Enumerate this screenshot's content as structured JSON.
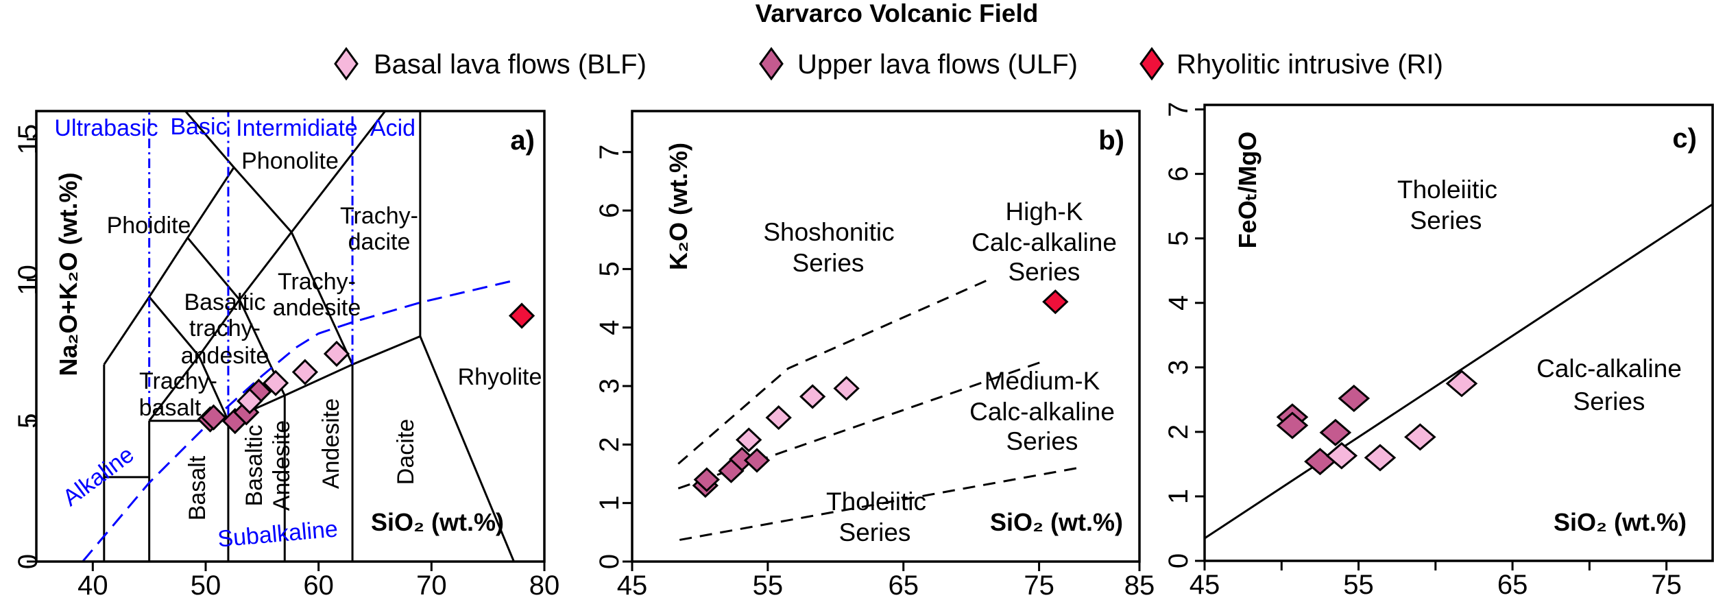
{
  "title": "Varvarco Volcanic Field",
  "legend": [
    {
      "key": "BLF",
      "label": "Basal lava flows (BLF)",
      "color": "#F6B8DC"
    },
    {
      "key": "ULF",
      "label": "Upper lava flows (ULF)",
      "color": "#C45A8F"
    },
    {
      "key": "RI",
      "label": "Rhyolitic intrusive (RI)",
      "color": "#F0103A"
    }
  ],
  "chart_data": [
    {
      "type": "scatter",
      "panel_label": "a)",
      "xlabel": "SiO₂ (wt.%)",
      "ylabel": "Na₂O+K₂O (wt.%)",
      "xlim": [
        35,
        80
      ],
      "ylim": [
        0,
        16
      ],
      "xticks": [
        40,
        50,
        60,
        70,
        80
      ],
      "xtick_labels": [
        "40",
        "50",
        "60",
        "70",
        "80"
      ],
      "yticks": [
        0,
        5,
        10,
        15
      ],
      "ytick_labels": [
        "0",
        "5",
        "10",
        "15"
      ],
      "grid": false,
      "series": [
        {
          "key": "ULF",
          "x": [
            50.4,
            50.7,
            52.6,
            53.6,
            54.7
          ],
          "y": [
            5.05,
            5.12,
            4.99,
            5.3,
            6.03
          ]
        },
        {
          "key": "BLF",
          "x": [
            53.9,
            56.2,
            58.8,
            61.6
          ],
          "y": [
            5.7,
            6.34,
            6.73,
            7.38
          ]
        },
        {
          "key": "RI",
          "x": [
            78.0
          ],
          "y": [
            8.73
          ]
        }
      ],
      "boundaries": [
        {
          "style": "solid",
          "color": "#000000",
          "points": [
            [
              41,
              0
            ],
            [
              41,
              7
            ]
          ]
        },
        {
          "style": "solid",
          "color": "#000000",
          "points": [
            [
              41,
              3
            ],
            [
              45,
              3
            ]
          ]
        },
        {
          "style": "solid",
          "color": "#000000",
          "points": [
            [
              45,
              0
            ],
            [
              45,
              5
            ]
          ]
        },
        {
          "style": "solid",
          "color": "#000000",
          "points": [
            [
              45,
              5
            ],
            [
              52,
              5
            ]
          ]
        },
        {
          "style": "solid",
          "color": "#000000",
          "points": [
            [
              52,
              0
            ],
            [
              52,
              5
            ]
          ]
        },
        {
          "style": "solid",
          "color": "#000000",
          "points": [
            [
              57,
              0
            ],
            [
              57,
              5.9
            ]
          ]
        },
        {
          "style": "solid",
          "color": "#000000",
          "points": [
            [
              63,
              0
            ],
            [
              63,
              7
            ]
          ]
        },
        {
          "style": "solid",
          "color": "#000000",
          "points": [
            [
              52,
              5
            ],
            [
              57,
              5.9
            ],
            [
              63,
              7
            ],
            [
              69,
              8
            ]
          ]
        },
        {
          "style": "solid",
          "color": "#000000",
          "points": [
            [
              69,
              8
            ],
            [
              69,
              16
            ]
          ]
        },
        {
          "style": "solid",
          "color": "#000000",
          "points": [
            [
              69,
              8
            ],
            [
              77.3,
              0
            ]
          ]
        },
        {
          "style": "solid",
          "color": "#000000",
          "points": [
            [
              41,
              7
            ],
            [
              45,
              9.4
            ],
            [
              48.4,
              11.5
            ],
            [
              52.5,
              14
            ]
          ]
        },
        {
          "style": "solid",
          "color": "#000000",
          "points": [
            [
              48.2,
              16
            ],
            [
              52.5,
              14
            ],
            [
              57.6,
              11.7
            ],
            [
              63,
              7
            ]
          ]
        },
        {
          "style": "solid",
          "color": "#000000",
          "points": [
            [
              45,
              9.4
            ],
            [
              49.4,
              7.3
            ],
            [
              52,
              5
            ]
          ]
        },
        {
          "style": "solid",
          "color": "#000000",
          "points": [
            [
              45,
              5
            ],
            [
              49.4,
              7.3
            ]
          ]
        },
        {
          "style": "solid",
          "color": "#000000",
          "points": [
            [
              49.4,
              7.3
            ],
            [
              53,
              9.3
            ],
            [
              57,
              5.9
            ]
          ]
        },
        {
          "style": "solid",
          "color": "#000000",
          "points": [
            [
              48.4,
              11.5
            ],
            [
              53,
              9.3
            ],
            [
              57.6,
              11.7
            ],
            [
              65.9,
              16
            ]
          ]
        },
        {
          "style": "dashdot",
          "color": "#0000FF",
          "points": [
            [
              45,
              5.5
            ],
            [
              45,
              16
            ]
          ]
        },
        {
          "style": "dashdot",
          "color": "#0000FF",
          "points": [
            [
              52,
              5.2
            ],
            [
              52,
              16
            ]
          ]
        },
        {
          "style": "dashdot",
          "color": "#0000FF",
          "points": [
            [
              63,
              7
            ],
            [
              63,
              16
            ]
          ]
        },
        {
          "style": "dashed",
          "color": "#0000FF",
          "points": [
            [
              39.1,
              0
            ],
            [
              45,
              2.8
            ],
            [
              50,
              4.8
            ],
            [
              55,
              6.6
            ],
            [
              58,
              7.6
            ],
            [
              60,
              8.1
            ],
            [
              63,
              8.5
            ],
            [
              69,
              9.2
            ],
            [
              77.5,
              10.0
            ]
          ]
        }
      ],
      "annotations": [
        {
          "text": "Ultrabasic",
          "color": "#0000FF"
        },
        {
          "text": "Basic",
          "color": "#0000FF"
        },
        {
          "text": "Intermidiate",
          "color": "#0000FF"
        },
        {
          "text": "Acid",
          "color": "#0000FF"
        },
        {
          "text": "Phonolite"
        },
        {
          "text": "Phoidite"
        },
        {
          "text": "Trachy-"
        },
        {
          "text": "dacite"
        },
        {
          "text": "Trachy-"
        },
        {
          "text": "andesite"
        },
        {
          "text": "Basaltic"
        },
        {
          "text": "trachy-"
        },
        {
          "text": "andesite"
        },
        {
          "text": "Trachy-"
        },
        {
          "text": "basalt"
        },
        {
          "text": "Basalt"
        },
        {
          "text": "Basaltic"
        },
        {
          "text": "Andesite"
        },
        {
          "text": "Andesite"
        },
        {
          "text": "Dacite"
        },
        {
          "text": "Rhyolite"
        },
        {
          "text": "Alkaline",
          "color": "#0000FF"
        },
        {
          "text": "Subalkaline",
          "color": "#0000FF"
        }
      ]
    },
    {
      "type": "scatter",
      "panel_label": "b)",
      "xlabel": "SiO₂ (wt.%)",
      "ylabel": "K₂O (wt.%)",
      "xlim": [
        45,
        82.4
      ],
      "ylim": [
        0,
        7.7
      ],
      "xticks": [
        45,
        55,
        65,
        75,
        85
      ],
      "xtick_labels": [
        "45",
        "55",
        "65",
        "75",
        "85"
      ],
      "yticks": [
        0,
        1,
        2,
        3,
        4,
        5,
        6,
        7
      ],
      "ytick_labels": [
        "0",
        "1",
        "2",
        "3",
        "4",
        "5",
        "6",
        "7"
      ],
      "grid": false,
      "series": [
        {
          "key": "ULF",
          "x": [
            50.4,
            50.5,
            52.3,
            53.1,
            54.2
          ],
          "y": [
            1.3,
            1.4,
            1.55,
            1.75,
            1.73
          ]
        },
        {
          "key": "BLF",
          "x": [
            53.6,
            55.8,
            58.3,
            60.8
          ],
          "y": [
            2.08,
            2.46,
            2.82,
            2.96
          ]
        },
        {
          "key": "RI",
          "x": [
            76.2
          ],
          "y": [
            4.44
          ]
        }
      ],
      "boundaries": [
        {
          "style": "dashed",
          "color": "#000000",
          "points": [
            [
              48.4,
              1.67
            ],
            [
              56.5,
              3.3
            ],
            [
              71.2,
              4.81
            ]
          ]
        },
        {
          "style": "dashed",
          "color": "#000000",
          "points": [
            [
              48.4,
              1.25
            ],
            [
              75.4,
              3.43
            ]
          ]
        },
        {
          "style": "dashed",
          "color": "#000000",
          "points": [
            [
              48.5,
              0.37
            ],
            [
              78.1,
              1.61
            ]
          ]
        }
      ],
      "annotations": [
        {
          "text": "Shoshonitic"
        },
        {
          "text": "Series"
        },
        {
          "text": "High-K"
        },
        {
          "text": "Calc-alkaline"
        },
        {
          "text": "Series"
        },
        {
          "text": "Medium-K"
        },
        {
          "text": "Calc-alkaline"
        },
        {
          "text": "Series"
        },
        {
          "text": "Tholeiitic"
        },
        {
          "text": "Series"
        }
      ]
    },
    {
      "type": "scatter",
      "panel_label": "c)",
      "xlabel": "SiO₂ (wt.%)",
      "ylabel": "FeOₜ/MgO",
      "xlim": [
        45,
        78
      ],
      "ylim": [
        0,
        7.07
      ],
      "xticks": [
        45,
        50,
        55,
        60,
        65,
        70,
        75
      ],
      "xtick_labels": [
        "45",
        "",
        "55",
        "",
        "65",
        "",
        "75"
      ],
      "yticks": [
        0,
        1,
        2,
        3,
        4,
        5,
        6,
        7
      ],
      "ytick_labels": [
        "0",
        "1",
        "2",
        "3",
        "4",
        "5",
        "6",
        "7"
      ],
      "grid": false,
      "series": [
        {
          "key": "ULF",
          "x": [
            50.7,
            50.7,
            52.5,
            53.5,
            54.7
          ],
          "y": [
            2.23,
            2.1,
            1.54,
            1.99,
            2.52
          ]
        },
        {
          "key": "BLF",
          "x": [
            53.9,
            56.4,
            59.0,
            61.7
          ],
          "y": [
            1.63,
            1.6,
            1.92,
            2.75
          ]
        }
      ],
      "boundaries": [
        {
          "style": "solid",
          "color": "#000000",
          "points": [
            [
              45,
              0.35
            ],
            [
              78,
              5.53
            ]
          ]
        }
      ],
      "annotations": [
        {
          "text": "Tholeiitic"
        },
        {
          "text": "Series"
        },
        {
          "text": "Calc-alkaline"
        },
        {
          "text": "Series"
        }
      ]
    }
  ]
}
